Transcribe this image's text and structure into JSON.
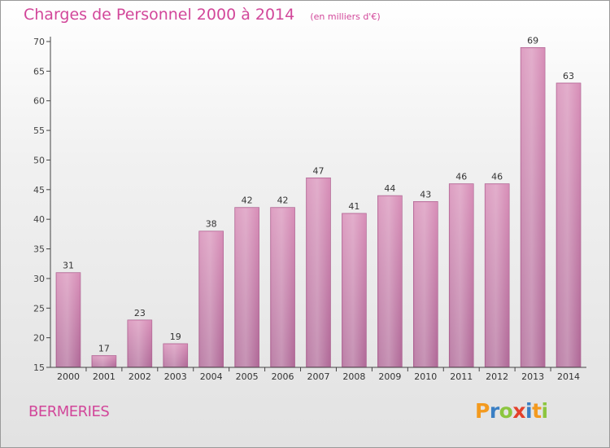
{
  "chart_data": {
    "type": "bar",
    "title": "Charges de Personnel 2000 à 2014",
    "subtitle": "(en milliers d'€)",
    "categories": [
      "2000",
      "2001",
      "2002",
      "2003",
      "2004",
      "2005",
      "2006",
      "2007",
      "2008",
      "2009",
      "2010",
      "2011",
      "2012",
      "2013",
      "2014"
    ],
    "values": [
      31,
      17,
      23,
      19,
      38,
      42,
      42,
      47,
      41,
      44,
      43,
      46,
      46,
      69,
      63
    ],
    "ylim": [
      15,
      70
    ],
    "yticks": [
      15,
      20,
      25,
      30,
      35,
      40,
      45,
      50,
      55,
      60,
      65,
      70
    ],
    "grid": false,
    "bar_color": "#d88fb8",
    "bar_color_dark": "#b06a98"
  },
  "footer": {
    "commune": "BERMERIES",
    "brand": {
      "letters": [
        "P",
        "r",
        "o",
        "x",
        "i",
        "t",
        "i"
      ],
      "colors": [
        "#f39a1f",
        "#3a7fc4",
        "#8cc63f",
        "#e4412b",
        "#3a7fc4",
        "#f39a1f",
        "#8cc63f"
      ]
    }
  }
}
